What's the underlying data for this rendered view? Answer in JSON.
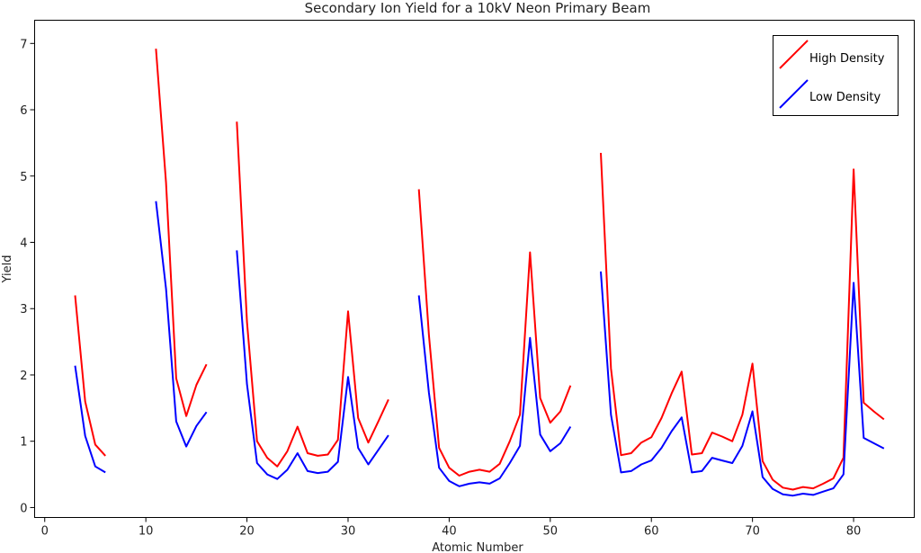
{
  "chart_data": {
    "type": "line",
    "title": "Secondary Ion Yield for a 10kV Neon Primary Beam",
    "xlabel": "Atomic Number",
    "ylabel": "Yield",
    "xlim": [
      -1,
      86
    ],
    "ylim": [
      -0.15,
      7.35
    ],
    "xticks": [
      0,
      10,
      20,
      30,
      40,
      50,
      60,
      70,
      80
    ],
    "yticks": [
      0,
      1,
      2,
      3,
      4,
      5,
      6,
      7
    ],
    "grid": false,
    "legend_position": "top-right",
    "series": [
      {
        "name": "High Density",
        "color": "#ff0000",
        "segments": [
          [
            [
              3,
              3.2
            ],
            [
              4,
              1.6
            ],
            [
              5,
              0.95
            ],
            [
              6,
              0.78
            ]
          ],
          [
            [
              11,
              6.92
            ],
            [
              12,
              4.9
            ],
            [
              13,
              1.95
            ],
            [
              14,
              1.38
            ],
            [
              15,
              1.85
            ],
            [
              16,
              2.16
            ]
          ],
          [
            [
              19,
              5.82
            ],
            [
              20,
              2.8
            ],
            [
              21,
              1.0
            ],
            [
              22,
              0.75
            ],
            [
              23,
              0.62
            ],
            [
              24,
              0.85
            ],
            [
              25,
              1.22
            ],
            [
              26,
              0.82
            ],
            [
              27,
              0.78
            ],
            [
              28,
              0.8
            ],
            [
              29,
              1.02
            ],
            [
              30,
              2.96
            ],
            [
              31,
              1.35
            ],
            [
              32,
              0.98
            ],
            [
              33,
              1.3
            ],
            [
              34,
              1.63
            ]
          ],
          [
            [
              37,
              4.8
            ],
            [
              38,
              2.6
            ],
            [
              39,
              0.9
            ],
            [
              40,
              0.6
            ],
            [
              41,
              0.48
            ],
            [
              42,
              0.54
            ],
            [
              43,
              0.57
            ],
            [
              44,
              0.54
            ],
            [
              45,
              0.66
            ],
            [
              46,
              1.0
            ],
            [
              47,
              1.4
            ],
            [
              48,
              3.85
            ],
            [
              49,
              1.65
            ],
            [
              50,
              1.28
            ],
            [
              51,
              1.45
            ],
            [
              52,
              1.84
            ]
          ],
          [
            [
              55,
              5.35
            ],
            [
              56,
              2.1
            ],
            [
              57,
              0.79
            ],
            [
              58,
              0.82
            ],
            [
              59,
              0.98
            ],
            [
              60,
              1.06
            ],
            [
              61,
              1.35
            ],
            [
              62,
              1.72
            ],
            [
              63,
              2.05
            ],
            [
              64,
              0.8
            ],
            [
              65,
              0.82
            ],
            [
              66,
              1.13
            ],
            [
              67,
              1.07
            ],
            [
              68,
              1.0
            ],
            [
              69,
              1.4
            ],
            [
              70,
              2.17
            ],
            [
              71,
              0.7
            ],
            [
              72,
              0.42
            ],
            [
              73,
              0.3
            ],
            [
              74,
              0.27
            ],
            [
              75,
              0.31
            ],
            [
              76,
              0.29
            ],
            [
              77,
              0.36
            ],
            [
              78,
              0.44
            ],
            [
              79,
              0.75
            ],
            [
              80,
              5.1
            ],
            [
              81,
              1.58
            ],
            [
              82,
              1.45
            ],
            [
              83,
              1.33
            ]
          ]
        ]
      },
      {
        "name": "Low Density",
        "color": "#0000ff",
        "segments": [
          [
            [
              3,
              2.14
            ],
            [
              4,
              1.08
            ],
            [
              5,
              0.62
            ],
            [
              6,
              0.53
            ]
          ],
          [
            [
              11,
              4.62
            ],
            [
              12,
              3.3
            ],
            [
              13,
              1.3
            ],
            [
              14,
              0.92
            ],
            [
              15,
              1.23
            ],
            [
              16,
              1.44
            ]
          ],
          [
            [
              19,
              3.88
            ],
            [
              20,
              1.86
            ],
            [
              21,
              0.67
            ],
            [
              22,
              0.5
            ],
            [
              23,
              0.43
            ],
            [
              24,
              0.57
            ],
            [
              25,
              0.82
            ],
            [
              26,
              0.55
            ],
            [
              27,
              0.52
            ],
            [
              28,
              0.54
            ],
            [
              29,
              0.69
            ],
            [
              30,
              1.97
            ],
            [
              31,
              0.9
            ],
            [
              32,
              0.65
            ],
            [
              33,
              0.87
            ],
            [
              34,
              1.09
            ]
          ],
          [
            [
              37,
              3.2
            ],
            [
              38,
              1.73
            ],
            [
              39,
              0.6
            ],
            [
              40,
              0.4
            ],
            [
              41,
              0.32
            ],
            [
              42,
              0.36
            ],
            [
              43,
              0.38
            ],
            [
              44,
              0.36
            ],
            [
              45,
              0.44
            ],
            [
              46,
              0.67
            ],
            [
              47,
              0.93
            ],
            [
              48,
              2.56
            ],
            [
              49,
              1.1
            ],
            [
              50,
              0.85
            ],
            [
              51,
              0.97
            ],
            [
              52,
              1.22
            ]
          ],
          [
            [
              55,
              3.56
            ],
            [
              56,
              1.4
            ],
            [
              57,
              0.53
            ],
            [
              58,
              0.55
            ],
            [
              59,
              0.65
            ],
            [
              60,
              0.71
            ],
            [
              61,
              0.9
            ],
            [
              62,
              1.15
            ],
            [
              63,
              1.36
            ],
            [
              64,
              0.53
            ],
            [
              65,
              0.55
            ],
            [
              66,
              0.75
            ],
            [
              67,
              0.71
            ],
            [
              68,
              0.67
            ],
            [
              69,
              0.93
            ],
            [
              70,
              1.45
            ],
            [
              71,
              0.46
            ],
            [
              72,
              0.28
            ],
            [
              73,
              0.2
            ],
            [
              74,
              0.18
            ],
            [
              75,
              0.21
            ],
            [
              76,
              0.19
            ],
            [
              77,
              0.24
            ],
            [
              78,
              0.29
            ],
            [
              79,
              0.5
            ],
            [
              80,
              3.39
            ],
            [
              81,
              1.05
            ],
            [
              82,
              0.97
            ],
            [
              83,
              0.89
            ]
          ]
        ]
      }
    ]
  }
}
